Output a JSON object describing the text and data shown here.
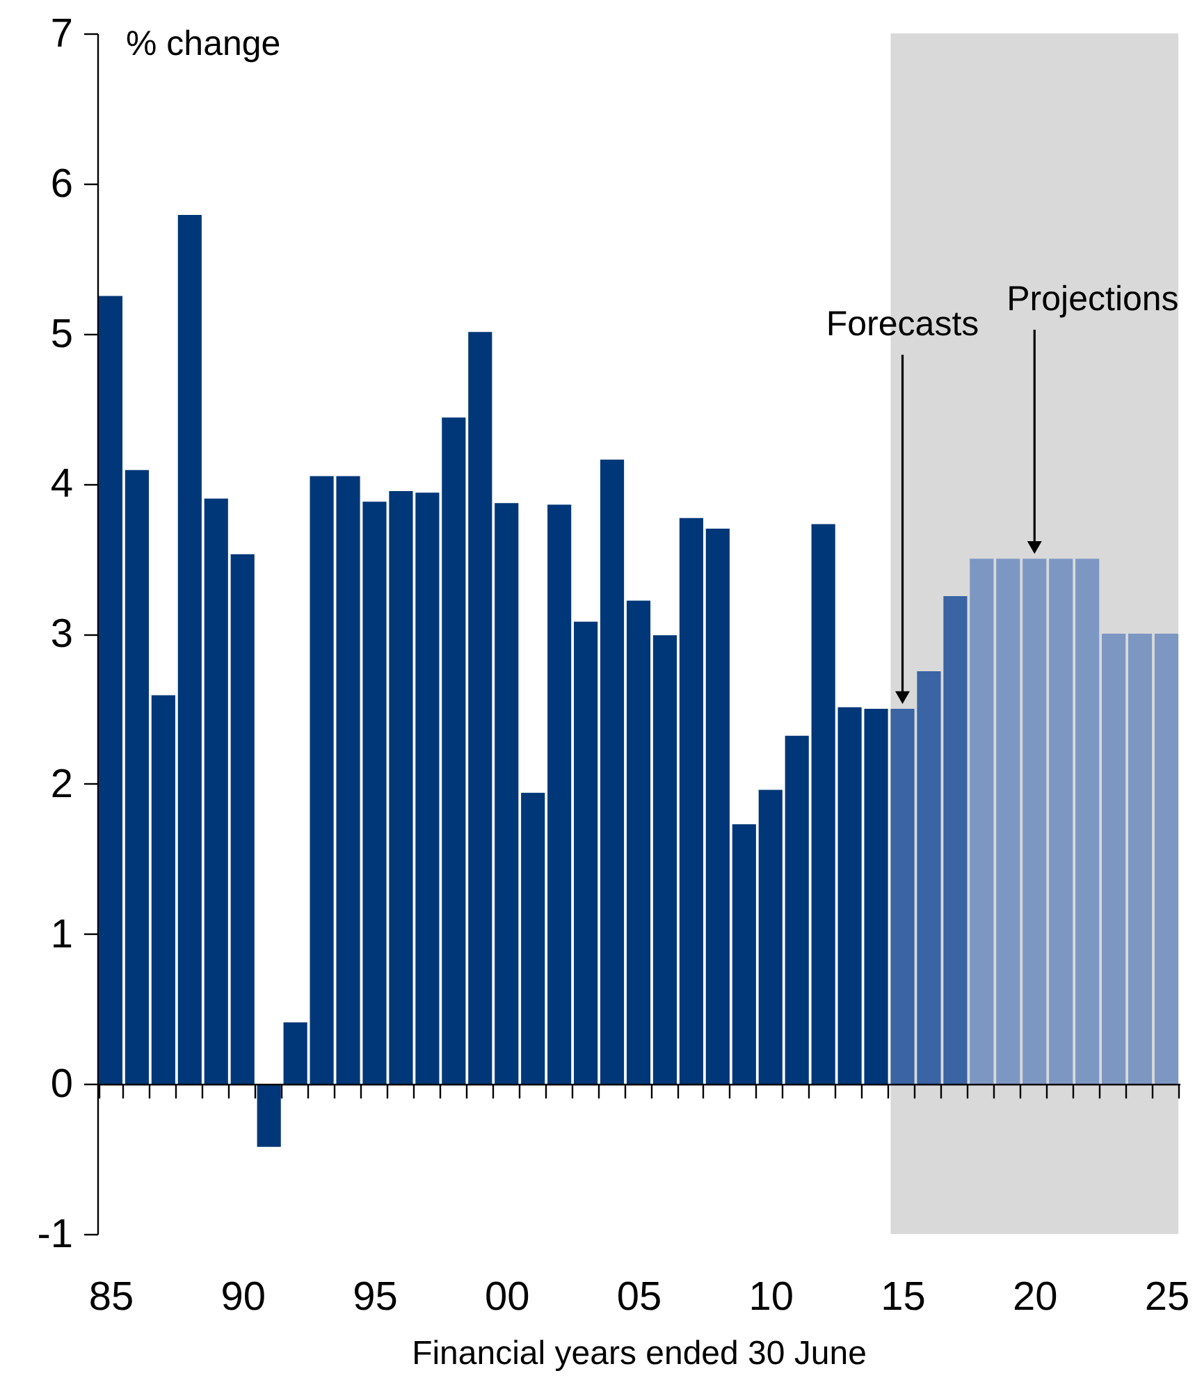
{
  "chart_data": {
    "type": "bar",
    "xlabel": "Financial years ended 30 June",
    "ylabel": "% change",
    "categories": [
      "85",
      null,
      null,
      null,
      null,
      "90",
      null,
      null,
      null,
      null,
      "95",
      null,
      null,
      null,
      null,
      "00",
      null,
      null,
      null,
      null,
      "05",
      null,
      null,
      null,
      null,
      "10",
      null,
      null,
      null,
      null,
      "15",
      null,
      null,
      null,
      null,
      "20",
      null,
      null,
      null,
      null,
      "25"
    ],
    "series": [
      {
        "color": "#003778",
        "values": [
          5.25,
          4.09,
          2.59,
          5.79,
          3.9,
          3.53,
          -0.42,
          0.41,
          4.05,
          4.05,
          3.88,
          3.95,
          3.94,
          4.44,
          5.01,
          3.87,
          1.94,
          3.86,
          3.08,
          4.16,
          3.22,
          2.99,
          3.77,
          3.7,
          1.73,
          1.96,
          2.32,
          3.73,
          2.51,
          2.5,
          null,
          null,
          null,
          null,
          null,
          null,
          null,
          null,
          null,
          null,
          null
        ]
      },
      {
        "color": "#3a64a3",
        "values": [
          null,
          null,
          null,
          null,
          null,
          null,
          null,
          null,
          null,
          null,
          null,
          null,
          null,
          null,
          null,
          null,
          null,
          null,
          null,
          null,
          null,
          null,
          null,
          null,
          null,
          null,
          null,
          null,
          null,
          null,
          2.5,
          2.75,
          3.25,
          null,
          null,
          null,
          null,
          null,
          null,
          null,
          null
        ]
      },
      {
        "color": "#7d97c3",
        "values": [
          null,
          null,
          null,
          null,
          null,
          null,
          null,
          null,
          null,
          null,
          null,
          null,
          null,
          null,
          null,
          null,
          null,
          null,
          null,
          null,
          null,
          null,
          null,
          null,
          null,
          null,
          null,
          null,
          null,
          null,
          null,
          null,
          null,
          3.5,
          3.5,
          3.5,
          3.5,
          3.5,
          3.0,
          3.0,
          3.0
        ]
      }
    ],
    "ylim": [
      -1,
      7
    ],
    "yticks": [
      -1,
      0,
      1,
      2,
      3,
      4,
      5,
      6,
      7
    ],
    "bands": [
      {
        "axis": "x",
        "from": "15",
        "to": "25",
        "color": "#d9d9d9"
      }
    ],
    "annotations": [
      {
        "text": "Forecasts",
        "x": "15",
        "y": 2.5
      },
      {
        "text": "Projections",
        "x": "20",
        "y": 3.5
      }
    ]
  }
}
